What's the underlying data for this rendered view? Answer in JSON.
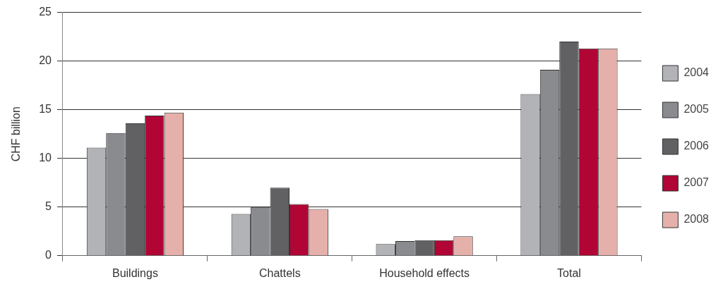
{
  "chart_data": {
    "type": "bar",
    "ylabel": "CHF billion",
    "categories": [
      "Buildings",
      "Chattels",
      "Household effects",
      "Total"
    ],
    "series": [
      {
        "name": "2004",
        "color": "#b2b3b7",
        "values": [
          11.1,
          4.3,
          1.2,
          16.6
        ]
      },
      {
        "name": "2005",
        "color": "#8a8b8f",
        "values": [
          12.6,
          5.0,
          1.5,
          19.1
        ]
      },
      {
        "name": "2006",
        "color": "#616163",
        "values": [
          13.6,
          7.0,
          1.6,
          22.0
        ]
      },
      {
        "name": "2007",
        "color": "#b10535",
        "values": [
          14.4,
          5.3,
          1.6,
          21.3
        ]
      },
      {
        "name": "2008",
        "color": "#e6b0aa",
        "values": [
          14.7,
          4.8,
          2.0,
          21.3
        ]
      }
    ],
    "ylim": [
      0,
      25
    ],
    "yticks": [
      0,
      5,
      10,
      15,
      20,
      25
    ],
    "grid": "y",
    "legend": "right"
  }
}
